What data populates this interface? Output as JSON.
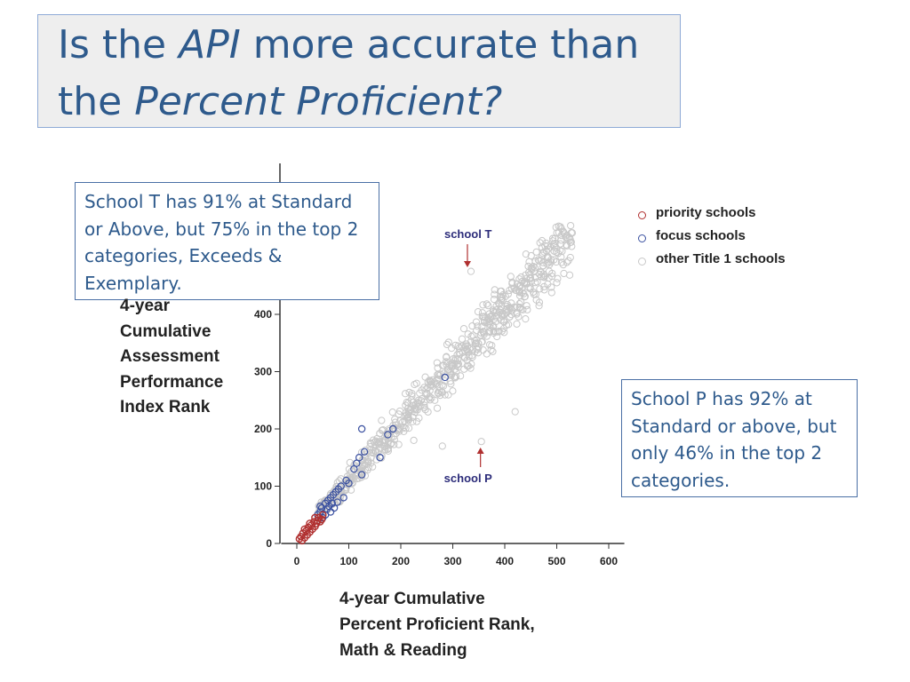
{
  "title": {
    "line1_pre": "Is the ",
    "line1_em": "API",
    "line1_post": " more accurate than",
    "line2_pre": "the ",
    "line2_em": "Percent Proficient?"
  },
  "callouts": {
    "school_t": [
      "School T has 91% at Standard",
      "or Above, but 75% in the top 2",
      "categories, Exceeds &",
      "Exemplary."
    ],
    "school_p": [
      "School P has 92% at",
      "Standard or above, but",
      "only 46% in the top 2",
      "categories."
    ]
  },
  "chart_data": {
    "type": "scatter",
    "xlabel": [
      "4-year Cumulative",
      "Percent Proficient Rank,",
      "Math & Reading"
    ],
    "ylabel": [
      "4-year",
      "Cumulative",
      "Assessment",
      "Performance",
      "Index Rank"
    ],
    "xlim": [
      -30,
      630
    ],
    "ylim": [
      0,
      560
    ],
    "x_ticks": [
      0,
      100,
      200,
      300,
      400,
      500,
      600
    ],
    "y_ticks": [
      0,
      100,
      200,
      300,
      400
    ],
    "grid": false,
    "legend_position": "top-right",
    "series": [
      {
        "name": "priority schools",
        "color": "#b03030",
        "points": [
          [
            5,
            8
          ],
          [
            8,
            12
          ],
          [
            10,
            5
          ],
          [
            12,
            18
          ],
          [
            15,
            10
          ],
          [
            18,
            22
          ],
          [
            20,
            15
          ],
          [
            22,
            28
          ],
          [
            25,
            20
          ],
          [
            28,
            32
          ],
          [
            30,
            25
          ],
          [
            33,
            38
          ],
          [
            35,
            30
          ],
          [
            38,
            35
          ],
          [
            40,
            40
          ],
          [
            42,
            45
          ],
          [
            45,
            38
          ],
          [
            48,
            42
          ],
          [
            50,
            50
          ],
          [
            15,
            25
          ],
          [
            25,
            35
          ],
          [
            35,
            45
          ]
        ]
      },
      {
        "name": "focus schools",
        "color": "#3a50a0",
        "points": [
          [
            40,
            50
          ],
          [
            45,
            55
          ],
          [
            48,
            62
          ],
          [
            50,
            45
          ],
          [
            55,
            70
          ],
          [
            58,
            60
          ],
          [
            60,
            75
          ],
          [
            62,
            65
          ],
          [
            65,
            80
          ],
          [
            68,
            70
          ],
          [
            70,
            85
          ],
          [
            72,
            62
          ],
          [
            75,
            90
          ],
          [
            78,
            72
          ],
          [
            80,
            95
          ],
          [
            85,
            100
          ],
          [
            90,
            80
          ],
          [
            95,
            110
          ],
          [
            100,
            105
          ],
          [
            110,
            130
          ],
          [
            115,
            140
          ],
          [
            120,
            150
          ],
          [
            125,
            120
          ],
          [
            130,
            160
          ],
          [
            160,
            150
          ],
          [
            175,
            190
          ],
          [
            185,
            200
          ],
          [
            125,
            200
          ],
          [
            285,
            290
          ],
          [
            45,
            65
          ],
          [
            55,
            50
          ],
          [
            65,
            55
          ]
        ]
      },
      {
        "name": "other Title 1 schools",
        "color": "#bbbbbb",
        "points": []
      }
    ],
    "annotations": [
      {
        "label": "school T",
        "x": 335,
        "y": 475
      },
      {
        "label": "school P",
        "x": 355,
        "y": 178
      }
    ]
  }
}
